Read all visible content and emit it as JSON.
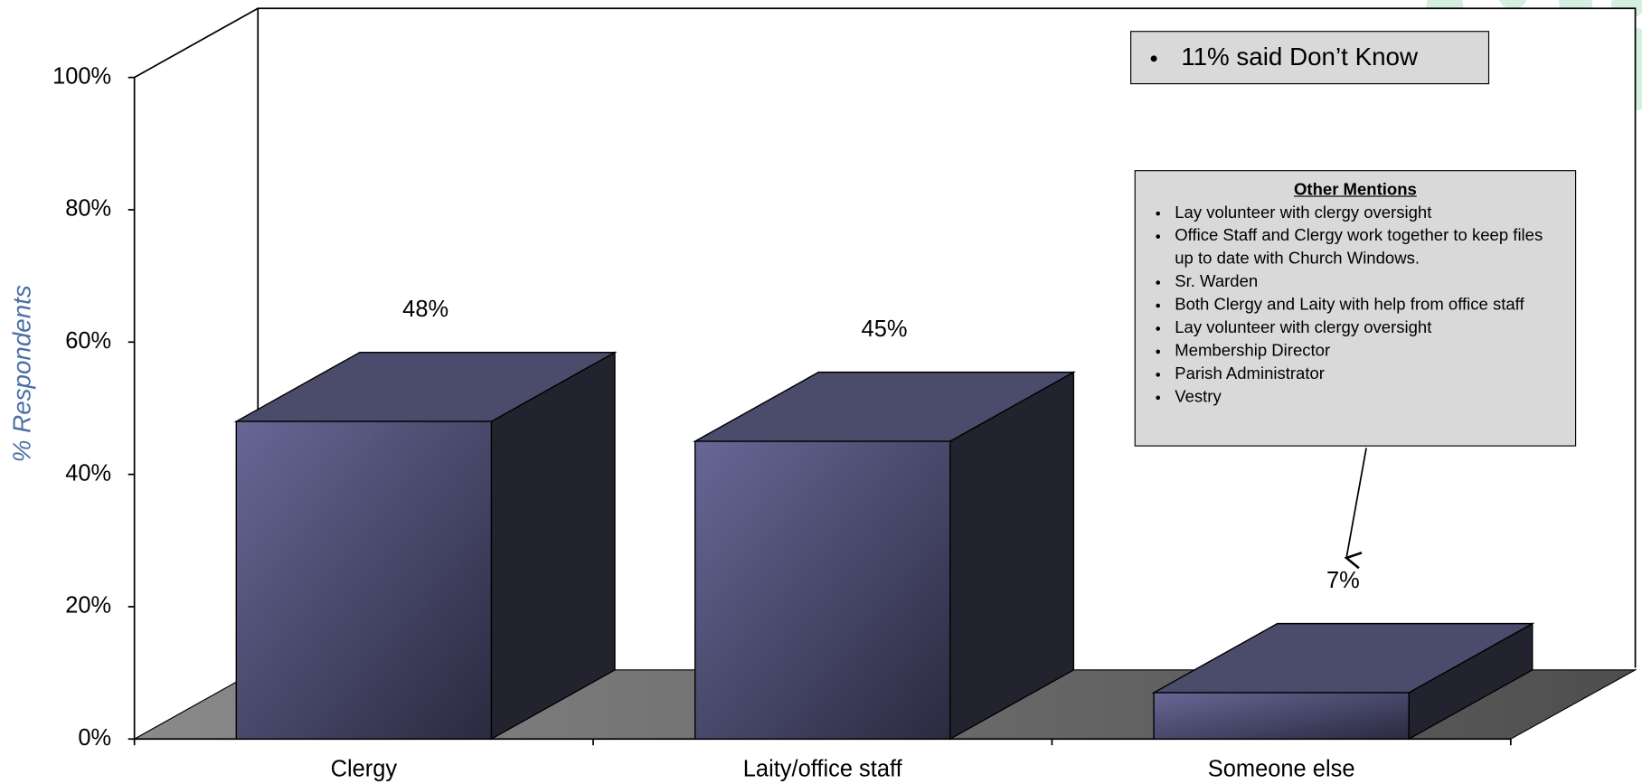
{
  "chart_data": {
    "type": "bar3d",
    "categories": [
      "Clergy",
      "Laity/office staff",
      "Someone else"
    ],
    "values": [
      48,
      45,
      7
    ],
    "value_labels": [
      "48%",
      "45%",
      "7%"
    ],
    "ylabel": "% Respondents",
    "ylim": [
      0,
      100
    ],
    "yticks": [
      {
        "value": 0,
        "label": "0%"
      },
      {
        "value": 20,
        "label": "20%"
      },
      {
        "value": 40,
        "label": "40%"
      },
      {
        "value": 60,
        "label": "60%"
      },
      {
        "value": 80,
        "label": "80%"
      },
      {
        "value": 100,
        "label": "100%"
      }
    ],
    "color": "#5c5c88",
    "note": "11% said Don’t Know",
    "callout": {
      "title": "Other Mentions",
      "items": [
        "Lay volunteer with clergy oversight",
        "Office Staff and Clergy work together to keep files up to date with Church Windows.",
        "Sr. Warden",
        "Both Clergy and Laity with help from office staff",
        "Lay volunteer with clergy oversight",
        "Membership Director",
        "Parish Administrator",
        "Vestry"
      ]
    }
  }
}
